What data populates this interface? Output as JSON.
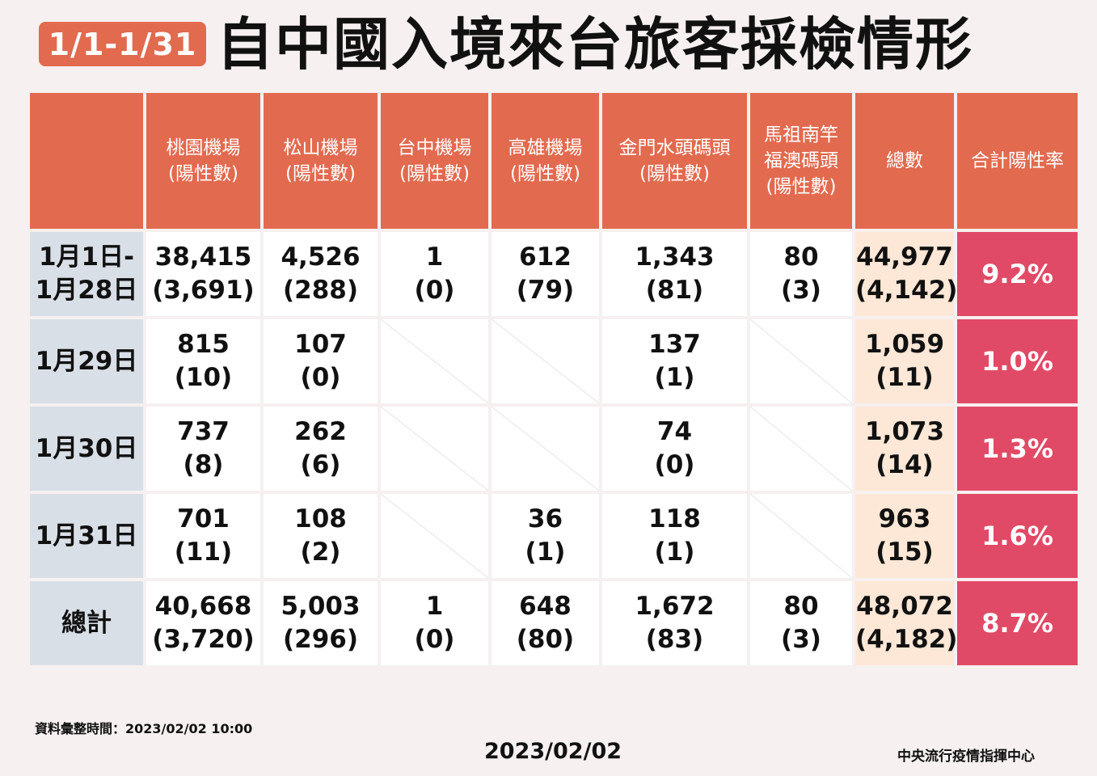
{
  "header": {
    "date_range": "1/1-1/31",
    "title": "自中國入境來台旅客採檢情形"
  },
  "table": {
    "columns": [
      [
        ""
      ],
      [
        "桃園機場",
        "(陽性數)"
      ],
      [
        "松山機場",
        "(陽性數)"
      ],
      [
        "台中機場",
        "(陽性數)"
      ],
      [
        "高雄機場",
        "(陽性數)"
      ],
      [
        "金門水頭碼頭",
        "(陽性數)"
      ],
      [
        "馬祖南竿",
        "福澳碼頭",
        "(陽性數)"
      ],
      [
        "總數"
      ],
      [
        "合計陽性率"
      ]
    ],
    "rows": [
      {
        "label": [
          "1月1日-",
          "1月28日"
        ],
        "cells": [
          [
            "38,415",
            "(3,691)"
          ],
          [
            "4,526",
            "(288)"
          ],
          [
            "1",
            "(0)"
          ],
          [
            "612",
            "(79)"
          ],
          [
            "1,343",
            "(81)"
          ],
          [
            "80",
            "(3)"
          ]
        ],
        "total": [
          "44,977",
          "(4,142)"
        ],
        "rate": "9.2%"
      },
      {
        "label": [
          "1月29日"
        ],
        "cells": [
          [
            "815",
            "(10)"
          ],
          [
            "107",
            "(0)"
          ],
          null,
          null,
          [
            "137",
            "(1)"
          ],
          null
        ],
        "total": [
          "1,059",
          "(11)"
        ],
        "rate": "1.0%"
      },
      {
        "label": [
          "1月30日"
        ],
        "cells": [
          [
            "737",
            "(8)"
          ],
          [
            "262",
            "(6)"
          ],
          null,
          null,
          [
            "74",
            "(0)"
          ],
          null
        ],
        "total": [
          "1,073",
          "(14)"
        ],
        "rate": "1.3%"
      },
      {
        "label": [
          "1月31日"
        ],
        "cells": [
          [
            "701",
            "(11)"
          ],
          [
            "108",
            "(2)"
          ],
          null,
          [
            "36",
            "(1)"
          ],
          [
            "118",
            "(1)"
          ],
          null
        ],
        "total": [
          "963",
          "(15)"
        ],
        "rate": "1.6%"
      },
      {
        "label": [
          "總計"
        ],
        "cells": [
          [
            "40,668",
            "(3,720)"
          ],
          [
            "5,003",
            "(296)"
          ],
          [
            "1",
            "(0)"
          ],
          [
            "648",
            "(80)"
          ],
          [
            "1,672",
            "(83)"
          ],
          [
            "80",
            "(3)"
          ]
        ],
        "total": [
          "48,072",
          "(4,182)"
        ],
        "rate": "8.7%"
      }
    ]
  },
  "footer": {
    "note": "資料彙整時間：2023/02/02  10:00",
    "date": "2023/02/02",
    "org": "中央流行疫情指揮中心"
  },
  "colors": {
    "header_bg": "#e26a4f",
    "row_label_bg": "#d9dfe7",
    "total_bg": "#fde7d6",
    "rate_bg": "#e14a66",
    "page_bg": "#f6f0f0"
  }
}
